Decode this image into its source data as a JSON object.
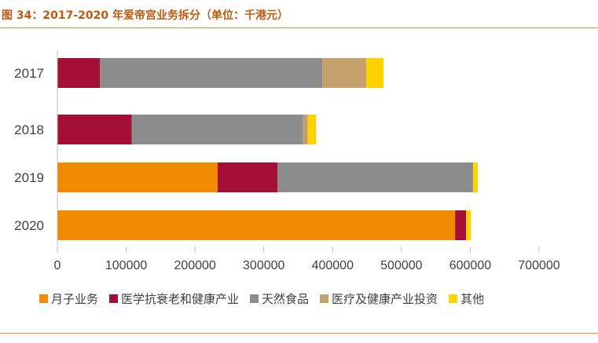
{
  "figure": {
    "title": "图 34：2017-2020 年爱帝宫业务拆分（单位：千港元）"
  },
  "chart_data": {
    "type": "bar",
    "orientation": "horizontal",
    "stacked": true,
    "categories": [
      "2017",
      "2018",
      "2019",
      "2020"
    ],
    "series": [
      {
        "name": "月子业务",
        "color": "#f08a00",
        "values": [
          0,
          0,
          233000,
          578000
        ]
      },
      {
        "name": "医学抗衰老和健康产业",
        "color": "#a50e35",
        "values": [
          62000,
          108000,
          87000,
          16000
        ]
      },
      {
        "name": "天然食品",
        "color": "#8c8c8c",
        "values": [
          323000,
          249000,
          284000,
          0
        ]
      },
      {
        "name": "医疗及健康产业投资",
        "color": "#c4a06a",
        "values": [
          64000,
          7000,
          0,
          0
        ]
      },
      {
        "name": "其他",
        "color": "#ffd200",
        "values": [
          25000,
          12000,
          7000,
          7000
        ]
      }
    ],
    "xlim": [
      0,
      700000
    ],
    "xticks": [
      "0",
      "100000",
      "200000",
      "300000",
      "400000",
      "500000",
      "600000",
      "700000"
    ],
    "grid": false,
    "legend_position": "bottom"
  }
}
